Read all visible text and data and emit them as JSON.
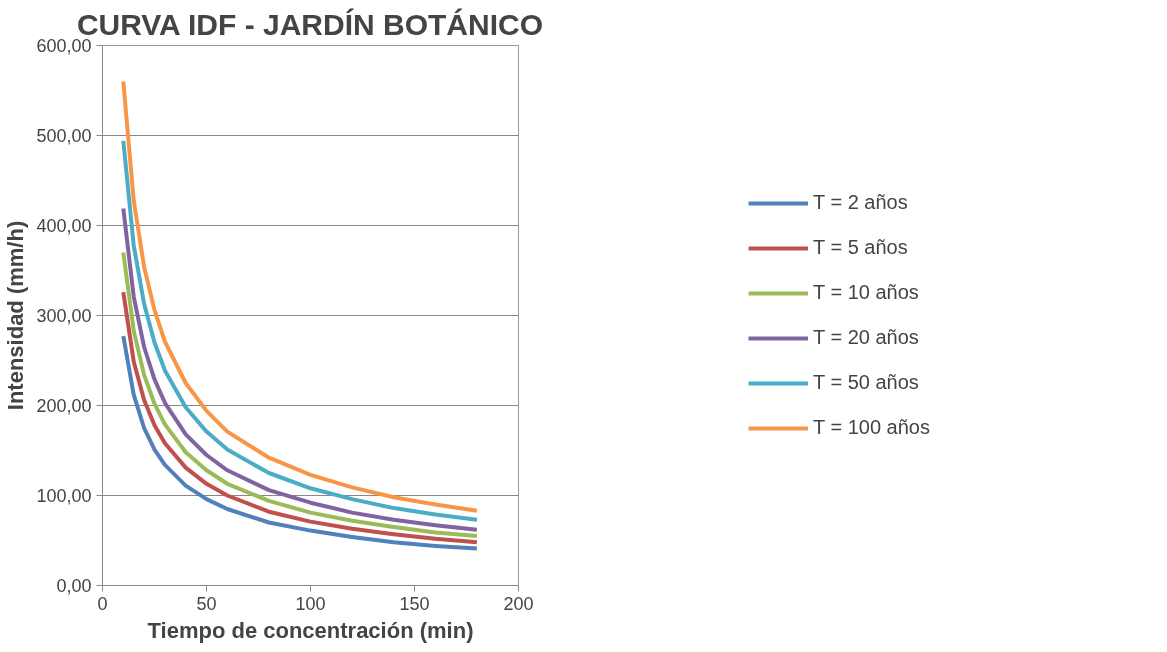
{
  "chart_data": {
    "type": "line",
    "title": "CURVA IDF - JARDÍN BOTÁNICO",
    "xlabel": "Tiempo de concentración (min)",
    "ylabel": "Intensidad (mm/h)",
    "x": [
      10,
      15,
      20,
      25,
      30,
      40,
      50,
      60,
      80,
      100,
      120,
      140,
      160,
      180
    ],
    "series": [
      {
        "name": "T = 2 años",
        "color": "#4f81bd",
        "values": [
          277,
          212,
          175,
          151,
          134,
          111,
          96,
          85,
          70,
          61,
          54,
          48,
          44,
          41
        ]
      },
      {
        "name": "T = 5 años",
        "color": "#c0504d",
        "values": [
          326,
          249,
          206,
          178,
          158,
          131,
          113,
          100,
          82,
          71,
          63,
          57,
          52,
          48
        ]
      },
      {
        "name": "T = 10 años",
        "color": "#9bbb59",
        "values": [
          370,
          283,
          234,
          202,
          179,
          148,
          128,
          113,
          94,
          81,
          72,
          65,
          59,
          55
        ]
      },
      {
        "name": "T = 20 años",
        "color": "#8064a2",
        "values": [
          419,
          321,
          265,
          229,
          203,
          168,
          145,
          128,
          106,
          92,
          81,
          73,
          67,
          62
        ]
      },
      {
        "name": "T = 50 años",
        "color": "#4bacc6",
        "values": [
          494,
          378,
          313,
          270,
          239,
          198,
          171,
          151,
          125,
          108,
          96,
          86,
          79,
          73
        ]
      },
      {
        "name": "T = 100 años",
        "color": "#f79646",
        "values": [
          560,
          428,
          354,
          306,
          271,
          225,
          194,
          171,
          142,
          123,
          109,
          98,
          90,
          83
        ]
      }
    ],
    "xlim": [
      0,
      200
    ],
    "xticks": [
      0,
      50,
      100,
      150,
      200
    ],
    "ylim": [
      0,
      600
    ],
    "yticks": [
      {
        "value": 0,
        "label": "0,00"
      },
      {
        "value": 100,
        "label": "100,00"
      },
      {
        "value": 200,
        "label": "200,00"
      },
      {
        "value": 300,
        "label": "300,00"
      },
      {
        "value": 400,
        "label": "400,00"
      },
      {
        "value": 500,
        "label": "500,00"
      },
      {
        "value": 600,
        "label": "600,00"
      }
    ],
    "grid": "y",
    "legend": "right",
    "marker": "none",
    "line_style": "solid"
  }
}
